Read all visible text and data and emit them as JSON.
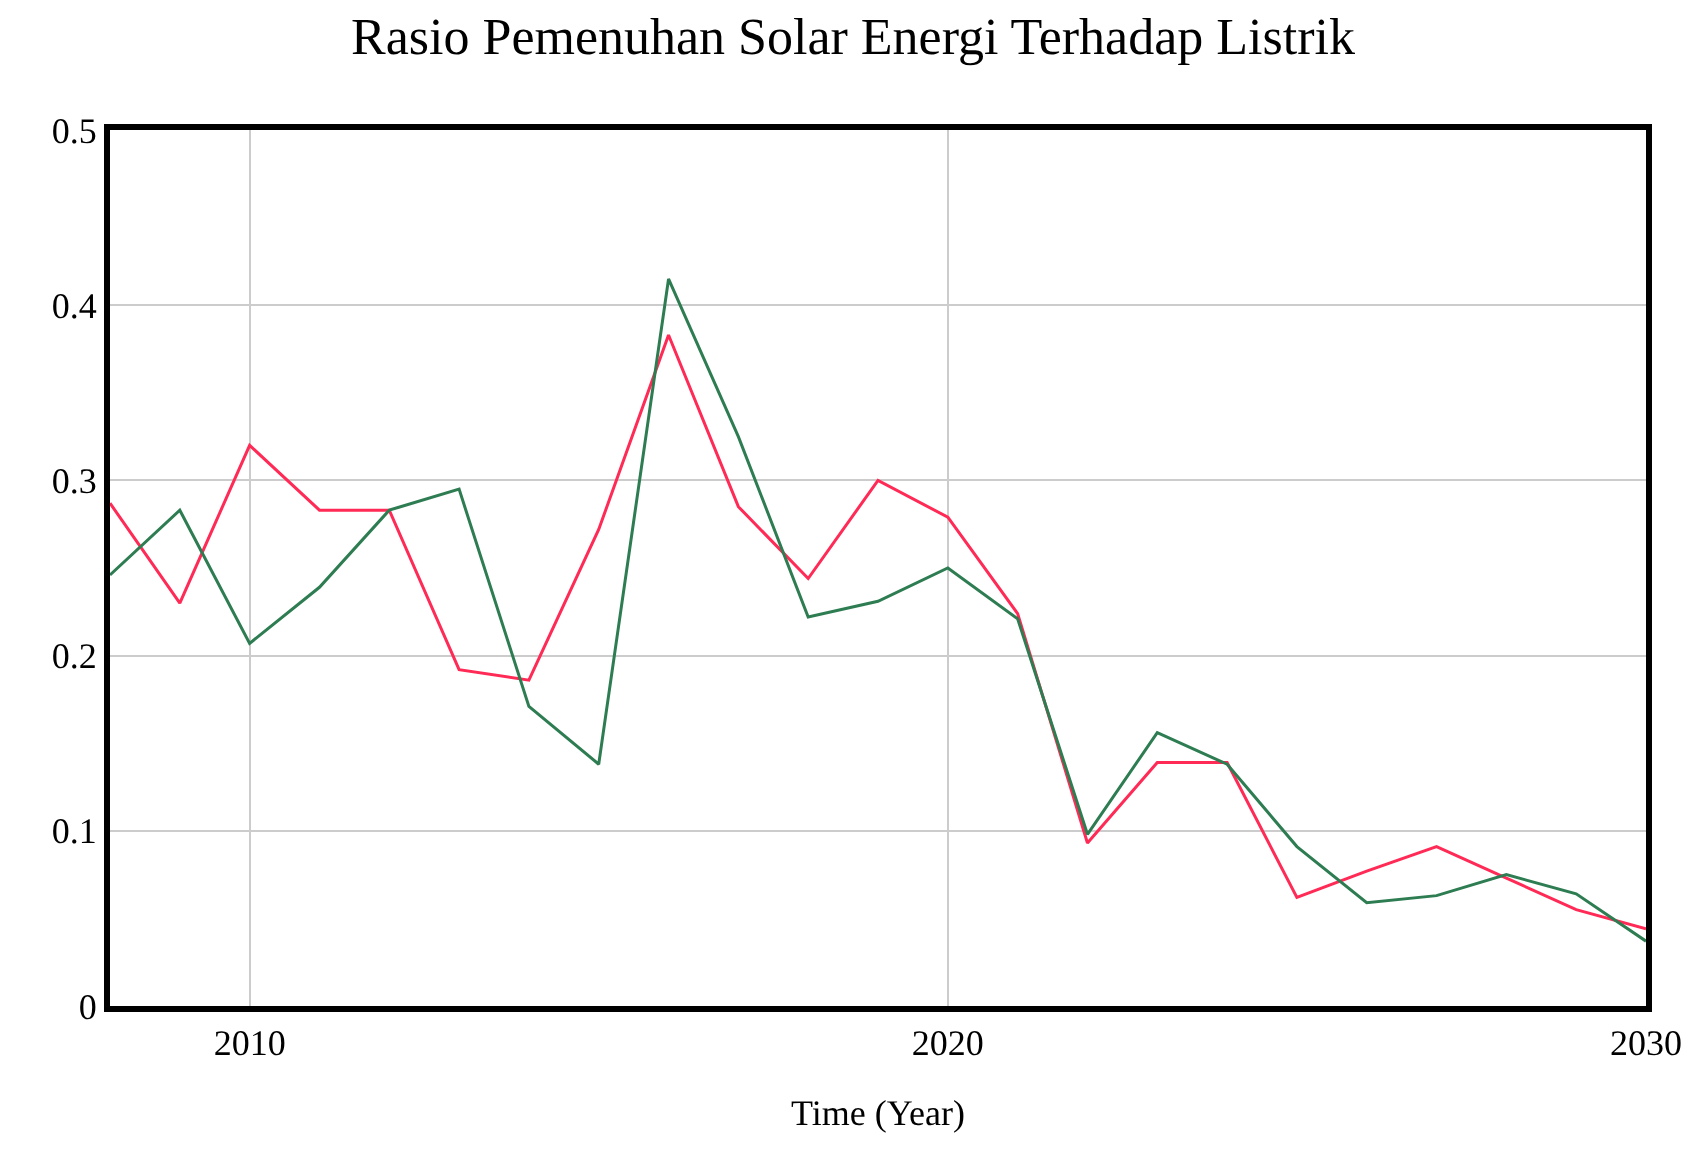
{
  "chart_data": {
    "type": "line",
    "title": "Rasio Pemenuhan Solar Energi Terhadap Listrik",
    "xlabel": "Time (Year)",
    "x": [
      2008,
      2009,
      2010,
      2011,
      2012,
      2013,
      2014,
      2015,
      2016,
      2017,
      2018,
      2019,
      2020,
      2021,
      2022,
      2023,
      2024,
      2025,
      2026,
      2027,
      2028,
      2029,
      2030
    ],
    "series": [
      {
        "color": "#ff2a55",
        "values": [
          0.287,
          0.23,
          0.32,
          0.283,
          0.283,
          0.192,
          0.186,
          0.272,
          0.383,
          0.285,
          0.244,
          0.3,
          0.279,
          0.224,
          0.093,
          0.139,
          0.139,
          0.062,
          0.077,
          0.091,
          0.073,
          0.055,
          0.044
        ]
      },
      {
        "color": "#2e7d52",
        "values": [
          0.246,
          0.283,
          0.207,
          0.239,
          0.283,
          0.295,
          0.171,
          0.138,
          0.415,
          0.325,
          0.222,
          0.231,
          0.25,
          0.221,
          0.098,
          0.156,
          0.138,
          0.091,
          0.059,
          0.063,
          0.075,
          0.064,
          0.037
        ]
      }
    ],
    "xlim": [
      2008,
      2030
    ],
    "xticks": [
      2010,
      2020,
      2030
    ],
    "ylim": [
      0,
      0.5
    ],
    "yticks": [
      0,
      0.1,
      0.2,
      0.3,
      0.4,
      0.5
    ],
    "grid": true,
    "marker": "none",
    "line_style": "solid"
  }
}
